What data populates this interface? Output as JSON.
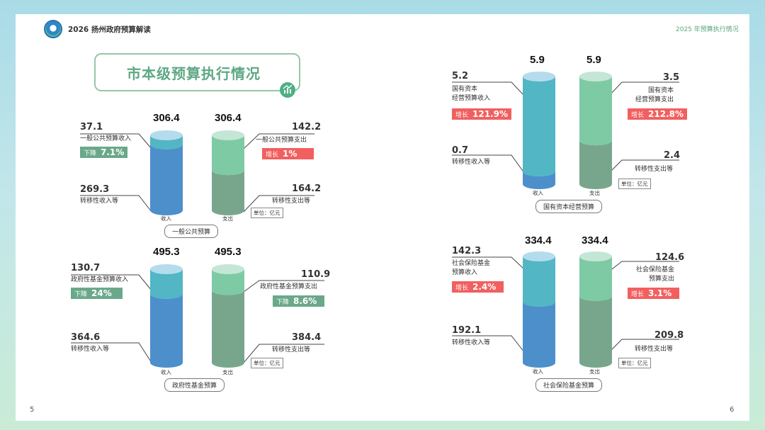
{
  "header": {
    "doc_title": "2026 扬州政府预算解读",
    "section": "2025 年预算执行情况"
  },
  "pages": {
    "left": "5",
    "right": "6"
  },
  "title": "市本级预算执行情况",
  "unit": "单位：亿元",
  "colors": {
    "income_top": "#52b6c4",
    "income_bottom": "#4d8fcb",
    "income_cap": "#b4dcec",
    "expense_top": "#7ecaa4",
    "expense_bottom": "#78a68d",
    "expense_cap": "#c4e6d6",
    "up": "#f25f5f",
    "down": "#6aa88a"
  },
  "axis": {
    "income": "收入",
    "expense": "支出"
  },
  "panels": [
    {
      "id": "general",
      "caption": "一般公共预算",
      "income_total": "306.4",
      "expense_total": "306.4",
      "income_main": {
        "value": "37.1",
        "label": "一般公共预算收入",
        "badge": "下降",
        "pct": "7.1%",
        "dir": "down"
      },
      "income_transfer": {
        "value": "269.3",
        "label": "转移性收入等"
      },
      "expense_main": {
        "value": "142.2",
        "label": "一般公共预算支出",
        "badge": "增长",
        "pct": "1%",
        "dir": "up"
      },
      "expense_transfer": {
        "value": "164.2",
        "label": "转移性支出等"
      },
      "ratios": {
        "income_top": 0.121,
        "expense_top": 0.464
      }
    },
    {
      "id": "fund",
      "caption": "政府性基金预算",
      "income_total": "495.3",
      "expense_total": "495.3",
      "income_main": {
        "value": "130.7",
        "label": "政府性基金预算收入",
        "badge": "下降",
        "pct": "24%",
        "dir": "down"
      },
      "income_transfer": {
        "value": "364.6",
        "label": "转移性收入等"
      },
      "expense_main": {
        "value": "110.9",
        "label": "政府性基金预算支出",
        "badge": "下降",
        "pct": "8.6%",
        "dir": "down"
      },
      "expense_transfer": {
        "value": "384.4",
        "label": "转移性支出等"
      },
      "ratios": {
        "income_top": 0.264,
        "expense_top": 0.224
      }
    },
    {
      "id": "state",
      "caption": "国有资本经营预算",
      "income_total": "5.9",
      "expense_total": "5.9",
      "income_main": {
        "value": "5.2",
        "label": "国有资本\n经营预算收入",
        "badge": "增长",
        "pct": "121.9%",
        "dir": "up"
      },
      "income_transfer": {
        "value": "0.7",
        "label": "转移性收入等"
      },
      "expense_main": {
        "value": "3.5",
        "label": "国有资本\n经营预算支出",
        "badge": "增长",
        "pct": "212.8%",
        "dir": "up"
      },
      "expense_transfer": {
        "value": "2.4",
        "label": "转移性支出等"
      },
      "ratios": {
        "income_top": 0.881,
        "expense_top": 0.593
      }
    },
    {
      "id": "social",
      "caption": "社会保险基金预算",
      "income_total": "334.4",
      "expense_total": "334.4",
      "income_main": {
        "value": "142.3",
        "label": "社会保险基金\n预算收入",
        "badge": "增长",
        "pct": "2.4%",
        "dir": "up"
      },
      "income_transfer": {
        "value": "192.1",
        "label": "转移性收入等"
      },
      "expense_main": {
        "value": "124.6",
        "label": "社会保险基金\n预算支出",
        "badge": "增长",
        "pct": "3.1%",
        "dir": "up"
      },
      "expense_transfer": {
        "value": "209.8",
        "label": "转移性支出等"
      },
      "ratios": {
        "income_top": 0.426,
        "expense_top": 0.373
      }
    }
  ]
}
